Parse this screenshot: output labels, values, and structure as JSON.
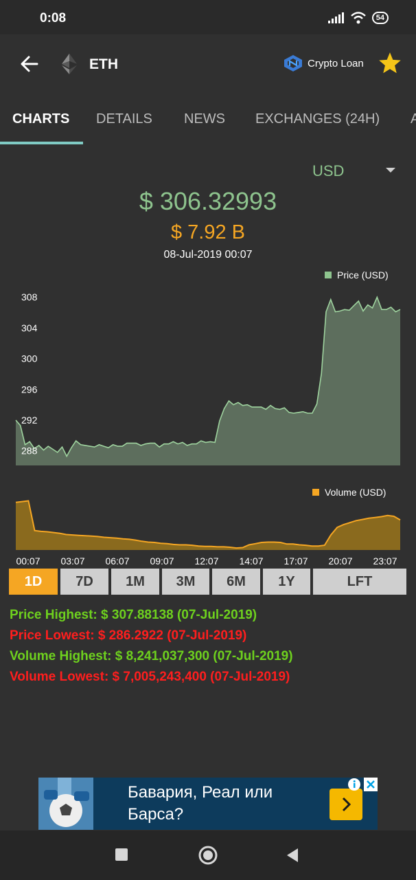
{
  "status_bar": {
    "time": "0:08",
    "battery": "54"
  },
  "header": {
    "coin": "ETH",
    "crypto_loan_label": "Crypto Loan",
    "back_icon": "arrow-left-icon",
    "favorite_icon": "star-icon"
  },
  "tabs": [
    {
      "label": "CHARTS",
      "active": true
    },
    {
      "label": "DETAILS"
    },
    {
      "label": "NEWS"
    },
    {
      "label": "EXCHANGES (24H)"
    },
    {
      "label": "A"
    }
  ],
  "currency": "USD",
  "price": "$ 306.32993",
  "market_cap": "$ 7.92 B",
  "timestamp": "08-Jul-2019 00:07",
  "colors": {
    "price_green": "#8ec48e",
    "volume_orange": "#f5a623",
    "accent_teal": "#80cbc4"
  },
  "chart_data": [
    {
      "type": "area",
      "series": [
        {
          "name": "Price (USD)",
          "y_points": [
            291.9,
            291.2,
            288.7,
            289.1,
            288.2,
            288.6,
            288.0,
            288.5,
            288.1,
            287.7,
            288.4,
            287.2,
            288.3,
            289.2,
            288.7,
            288.6,
            288.5,
            288.4,
            288.7,
            288.5,
            288.3,
            288.7,
            288.5,
            288.5,
            288.9,
            288.9,
            288.9,
            288.6,
            288.8,
            288.9,
            288.9,
            288.4,
            288.8,
            288.8,
            289.1,
            288.8,
            289.0,
            288.6,
            288.8,
            288.8,
            289.2,
            289.0,
            289.1,
            289.0,
            291.8,
            293.4,
            294.4,
            293.9,
            294.2,
            293.8,
            293.9,
            293.6,
            293.6,
            293.6,
            293.3,
            293.8,
            293.4,
            293.3,
            293.5,
            292.9,
            292.8,
            292.9,
            293.0,
            292.8,
            292.8,
            294.0,
            298.0,
            306.0,
            307.6,
            306.0,
            306.1,
            306.3,
            306.2,
            306.8,
            307.4,
            306.1,
            306.9,
            306.5,
            307.9,
            306.3,
            306.3,
            306.6,
            306.0,
            306.3
          ]
        }
      ],
      "yticks": [
        288,
        292,
        296,
        300,
        304,
        308
      ],
      "ylim": [
        286,
        309
      ],
      "legend": "top-right"
    },
    {
      "type": "area",
      "series": [
        {
          "name": "Volume (USD)",
          "y_points": [
            8.2,
            8.22,
            8.24,
            7.49,
            7.47,
            7.46,
            7.44,
            7.42,
            7.39,
            7.38,
            7.37,
            7.36,
            7.35,
            7.34,
            7.32,
            7.31,
            7.3,
            7.28,
            7.27,
            7.25,
            7.22,
            7.2,
            7.19,
            7.17,
            7.16,
            7.14,
            7.13,
            7.13,
            7.12,
            7.1,
            7.09,
            7.09,
            7.08,
            7.08,
            7.07,
            7.05,
            7.06,
            7.13,
            7.16,
            7.19,
            7.2,
            7.2,
            7.19,
            7.15,
            7.15,
            7.13,
            7.12,
            7.1,
            7.1,
            7.12,
            7.38,
            7.57,
            7.64,
            7.69,
            7.74,
            7.77,
            7.8,
            7.82,
            7.84,
            7.87,
            7.85,
            7.76
          ]
        }
      ],
      "x_tick_labels": [
        "00:07",
        "03:07",
        "06:07",
        "09:07",
        "12:07",
        "14:07",
        "17:07",
        "20:07",
        "23:07"
      ],
      "legend": "top-right"
    }
  ],
  "ranges": [
    {
      "label": "1D",
      "active": true
    },
    {
      "label": "7D"
    },
    {
      "label": "1M"
    },
    {
      "label": "3M"
    },
    {
      "label": "6M"
    },
    {
      "label": "1Y"
    },
    {
      "label": "LFT"
    }
  ],
  "stats": {
    "price_high": "Price Highest: $ 307.88138 (07-Jul-2019)",
    "price_low": "Price Lowest: $ 286.2922 (07-Jul-2019)",
    "volume_high": "Volume Highest: $ 8,241,037,300 (07-Jul-2019)",
    "volume_low": "Volume Lowest: $ 7,005,243,400 (07-Jul-2019)"
  },
  "ad": {
    "line1": "Бавария, Реал или",
    "line2": "Барса?"
  }
}
